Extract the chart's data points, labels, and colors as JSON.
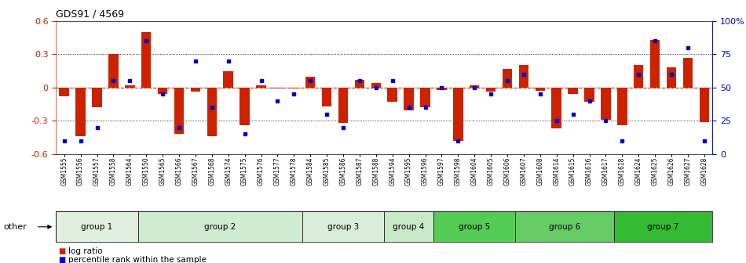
{
  "title": "GDS91 / 4569",
  "samples": [
    "GSM1555",
    "GSM1556",
    "GSM1557",
    "GSM1558",
    "GSM1564",
    "GSM1550",
    "GSM1565",
    "GSM1566",
    "GSM1567",
    "GSM1568",
    "GSM1574",
    "GSM1575",
    "GSM1576",
    "GSM1577",
    "GSM1578",
    "GSM1584",
    "GSM1585",
    "GSM1586",
    "GSM1587",
    "GSM1588",
    "GSM1594",
    "GSM1595",
    "GSM1596",
    "GSM1597",
    "GSM1598",
    "GSM1604",
    "GSM1605",
    "GSM1606",
    "GSM1607",
    "GSM1608",
    "GSM1614",
    "GSM1615",
    "GSM1616",
    "GSM1617",
    "GSM1618",
    "GSM1624",
    "GSM1625",
    "GSM1626",
    "GSM1627",
    "GSM1628"
  ],
  "log_ratio": [
    -0.08,
    -0.44,
    -0.18,
    0.3,
    0.02,
    0.5,
    -0.06,
    -0.42,
    -0.04,
    -0.44,
    0.15,
    -0.34,
    0.02,
    -0.01,
    -0.01,
    0.1,
    -0.17,
    -0.32,
    0.07,
    0.04,
    -0.13,
    -0.21,
    -0.18,
    -0.02,
    -0.48,
    0.02,
    -0.04,
    0.17,
    0.2,
    -0.03,
    -0.37,
    -0.06,
    -0.13,
    -0.29,
    -0.34,
    0.2,
    0.43,
    0.18,
    0.27,
    -0.31
  ],
  "percentile": [
    10,
    10,
    20,
    55,
    55,
    85,
    45,
    20,
    70,
    35,
    70,
    15,
    55,
    40,
    45,
    55,
    30,
    20,
    55,
    50,
    55,
    35,
    35,
    50,
    10,
    50,
    45,
    55,
    60,
    45,
    25,
    30,
    40,
    25,
    10,
    60,
    85,
    60,
    80,
    10
  ],
  "group_data": [
    {
      "name": "group 1",
      "start": 0,
      "end": 5,
      "color": "#e0f0e0"
    },
    {
      "name": "group 2",
      "start": 5,
      "end": 15,
      "color": "#d0ecd0"
    },
    {
      "name": "group 3",
      "start": 15,
      "end": 20,
      "color": "#d8eed8"
    },
    {
      "name": "group 4",
      "start": 20,
      "end": 23,
      "color": "#c8e8c8"
    },
    {
      "name": "group 5",
      "start": 23,
      "end": 28,
      "color": "#55cc55"
    },
    {
      "name": "group 6",
      "start": 28,
      "end": 34,
      "color": "#66cc66"
    },
    {
      "name": "group 7",
      "start": 34,
      "end": 40,
      "color": "#33bb33"
    }
  ],
  "ylim": [
    -0.6,
    0.6
  ],
  "bar_color": "#cc2200",
  "dot_color": "#0000cc",
  "zero_line_color": "#cc2200",
  "bg_color": "#ffffff",
  "plot_bg": "#f8f8f8",
  "right_yticks": [
    0,
    25,
    50,
    75,
    100
  ],
  "right_yticklabels": [
    "0",
    "25",
    "50",
    "75",
    "100%"
  ],
  "left_yticks": [
    -0.6,
    -0.3,
    0.0,
    0.3,
    0.6
  ],
  "left_yticklabels": [
    "-0.6",
    "-0.3",
    "0",
    "0.3",
    "0.6"
  ]
}
